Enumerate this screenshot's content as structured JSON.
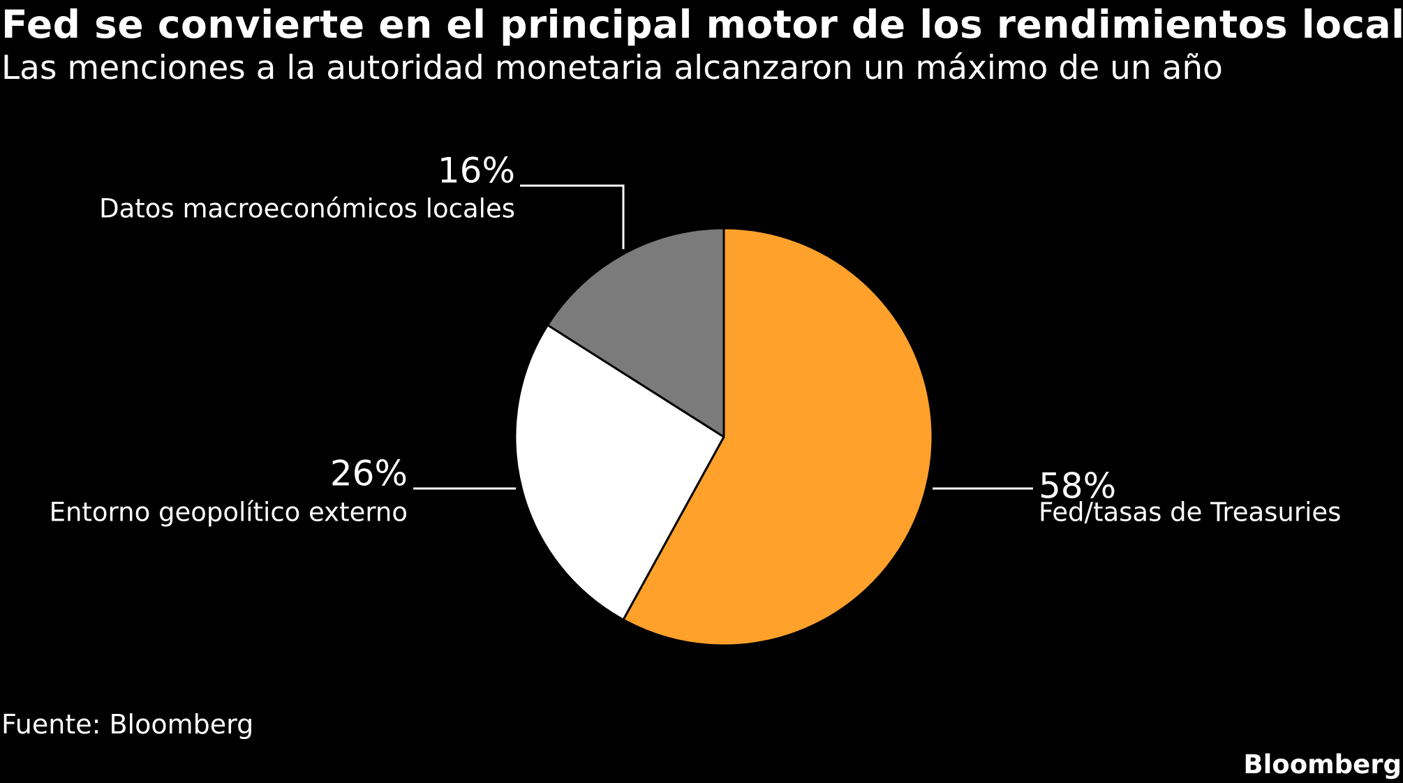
{
  "title": "Fed se convierte en el principal motor de los rendimientos locales",
  "subtitle": "Las menciones a la autoridad monetaria alcanzaron un máximo de un año",
  "source": "Fuente: Bloomberg",
  "brand": "Bloomberg",
  "colors": {
    "background": "#000000",
    "text": "#ffffff",
    "leader": "#ffffff",
    "slice_border": "#000000"
  },
  "chart_data": {
    "type": "pie",
    "start_angle_deg": 0,
    "direction": "clockwise",
    "slices": [
      {
        "label": "Fed/tasas de Treasuries",
        "value": 58,
        "value_label": "58%",
        "color": "#ffa12b"
      },
      {
        "label": "Entorno geopolítico externo",
        "value": 26,
        "value_label": "26%",
        "color": "#ffffff"
      },
      {
        "label": "Datos macroeconómicos locales",
        "value": 16,
        "value_label": "16%",
        "color": "#7b7b7b"
      }
    ]
  }
}
